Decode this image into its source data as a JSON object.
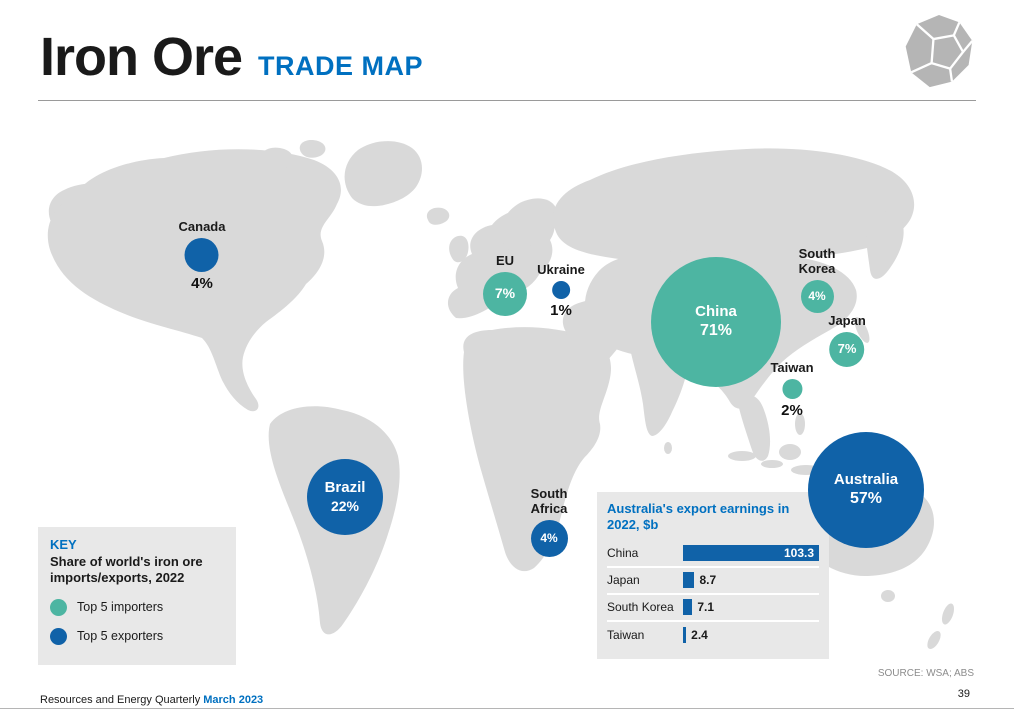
{
  "header": {
    "title": "Iron Ore",
    "subtitle": "TRADE MAP"
  },
  "map": {
    "bubbles": [
      {
        "label": "Canada",
        "value": "4%",
        "type": "exporter"
      },
      {
        "label": "EU",
        "value": "7%",
        "type": "importer"
      },
      {
        "label": "Ukraine",
        "value": "1%",
        "type": "exporter"
      },
      {
        "label": "China",
        "value": "71%",
        "type": "importer"
      },
      {
        "label": "South Korea",
        "value": "4%",
        "type": "importer"
      },
      {
        "label": "Japan",
        "value": "7%",
        "type": "importer"
      },
      {
        "label": "Taiwan",
        "value": "2%",
        "type": "importer"
      },
      {
        "label": "Brazil",
        "value": "22%",
        "type": "exporter"
      },
      {
        "label": "South Africa",
        "value": "4%",
        "type": "exporter"
      },
      {
        "label": "Australia",
        "value": "57%",
        "type": "exporter"
      }
    ]
  },
  "key": {
    "title": "KEY",
    "description": "Share of world's iron ore imports/exports, 2022",
    "items": [
      {
        "label": "Top 5 importers",
        "type": "importer"
      },
      {
        "label": "Top 5 exporters",
        "type": "exporter"
      }
    ]
  },
  "chart_data": {
    "type": "bar",
    "orientation": "horizontal",
    "title": "Australia's export earnings in 2022, $b",
    "categories": [
      "China",
      "Japan",
      "South Korea",
      "Taiwan"
    ],
    "values": [
      103.3,
      8.7,
      7.1,
      2.4
    ],
    "xlim": [
      0,
      103.3
    ],
    "legend_position": "none",
    "grid": false
  },
  "source": "SOURCE: WSA; ABS",
  "footer": {
    "left_text": "Resources and Energy Quarterly ",
    "left_highlight": "March 2023",
    "page_number": "39"
  },
  "colors": {
    "importer": "#4db5a2",
    "exporter": "#1062a8",
    "accent_blue": "#0070c0",
    "map_gray": "#d9d9d9"
  }
}
